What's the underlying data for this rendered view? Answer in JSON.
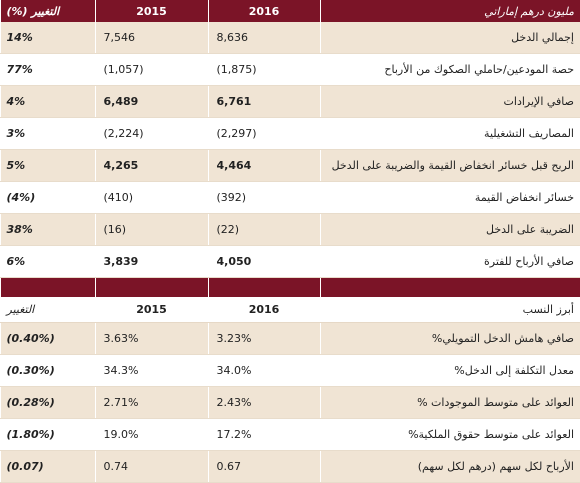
{
  "income": {
    "header": {
      "title": "مليون درهم إماراتي",
      "col_2016": "2016",
      "col_2015": "2015",
      "change": "التغيير (%)"
    },
    "rows": [
      [
        "إجمالي الدخل",
        "8,636",
        "7,546",
        "14%"
      ],
      [
        "حصة المودعين/حاملي الصكوك من الأرباح",
        "(1,875)",
        "(1,057)",
        "77%"
      ],
      [
        "صافي الإيرادات",
        "6,761",
        "6,489",
        "4%"
      ],
      [
        "المصاريف التشغيلية",
        "(2,297)",
        "(2,224)",
        "3%"
      ],
      [
        "الربح قبل خسائر انخفاض القيمة والضريبة على الدخل",
        "4,464",
        "4,265",
        "5%"
      ],
      [
        "خسائر انخفاض القيمة",
        "(392)",
        "(410)",
        "(4%)"
      ],
      [
        "الضريبة على الدخل",
        "(22)",
        "(16)",
        "38%"
      ],
      [
        "صافي الأرباح للفترة",
        "4,050",
        "3,839",
        "6%"
      ]
    ]
  },
  "ratios": {
    "header": {
      "title": "أبرز النسب",
      "col_2016": "2016",
      "col_2015": "2015",
      "change": "التغيير"
    },
    "rows": [
      [
        "صافي هامش الدخل التمويلي%",
        "3.23%",
        "3.63%",
        "(0.40%)"
      ],
      [
        "معدل التكلفة إلى الدخل%",
        "34.0%",
        "34.3%",
        "(0.30%)"
      ],
      [
        "العوائد على متوسط الموجودات %",
        "2.43%",
        "2.71%",
        "(0.28%)"
      ],
      [
        "العوائد على متوسط حقوق الملكية%",
        "17.2%",
        "19.0%",
        "(1.80%)"
      ],
      [
        "الأرباح لكل سهم (درهم لكل سهم)",
        "0.67",
        "0.74",
        "(0.07)"
      ]
    ]
  }
}
